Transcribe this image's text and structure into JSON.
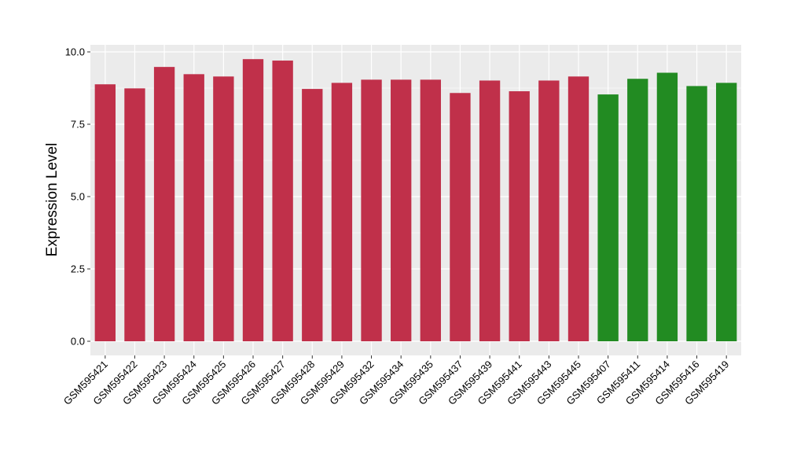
{
  "chart_data": {
    "type": "bar",
    "title": "",
    "xlabel": "",
    "ylabel": "Expression Level",
    "ylim": [
      0,
      10.3
    ],
    "yticks": [
      "0.0",
      "2.5",
      "5.0",
      "7.5",
      "10.0"
    ],
    "ytick_values": [
      0,
      2.5,
      5,
      7.5,
      10
    ],
    "grid": true,
    "legend": "none",
    "categories": [
      "GSM595421",
      "GSM595422",
      "GSM595423",
      "GSM595424",
      "GSM595425",
      "GSM595426",
      "GSM595427",
      "GSM595428",
      "GSM595429",
      "GSM595432",
      "GSM595434",
      "GSM595435",
      "GSM595437",
      "GSM595439",
      "GSM595441",
      "GSM595443",
      "GSM595445",
      "GSM595407",
      "GSM595411",
      "GSM595414",
      "GSM595416",
      "GSM595419"
    ],
    "values": [
      8.88,
      8.74,
      9.48,
      9.23,
      9.15,
      9.75,
      9.7,
      8.72,
      8.93,
      9.04,
      9.04,
      9.04,
      8.58,
      9.01,
      8.64,
      9.01,
      9.15,
      8.53,
      9.07,
      9.28,
      8.82,
      8.93
    ],
    "group_index": [
      0,
      0,
      0,
      0,
      0,
      0,
      0,
      0,
      0,
      0,
      0,
      0,
      0,
      0,
      0,
      0,
      0,
      1,
      1,
      1,
      1,
      1
    ],
    "colors": [
      "#c0304a",
      "#228b22"
    ],
    "panel_background": "#ebebeb",
    "grid_color": "#ffffff"
  }
}
